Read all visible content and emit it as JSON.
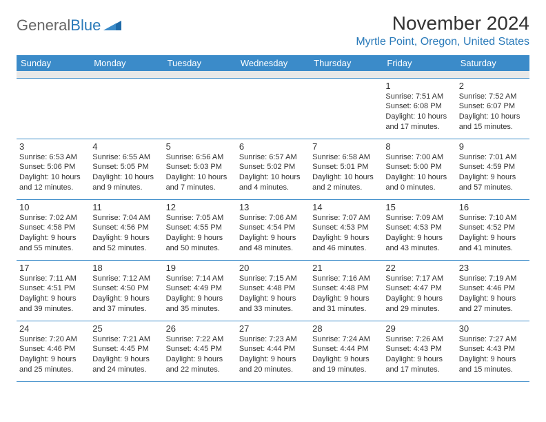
{
  "brand": {
    "word1": "General",
    "word2": "Blue"
  },
  "title": "November 2024",
  "location": "Myrtle Point, Oregon, United States",
  "day_headers": [
    "Sunday",
    "Monday",
    "Tuesday",
    "Wednesday",
    "Thursday",
    "Friday",
    "Saturday"
  ],
  "colors": {
    "header_bg": "#3b8bc9",
    "header_text": "#ffffff",
    "accent": "#2a7ab9",
    "cell_border": "#3b8bc9",
    "blank_row_bg": "#e8e8e8"
  },
  "typography": {
    "title_fontsize": 28,
    "location_fontsize": 16,
    "header_fontsize": 13,
    "daynum_fontsize": 13,
    "cell_fontsize": 11
  },
  "weeks": [
    [
      null,
      null,
      null,
      null,
      null,
      {
        "n": "1",
        "sr": "Sunrise: 7:51 AM",
        "ss": "Sunset: 6:08 PM",
        "d1": "Daylight: 10 hours",
        "d2": "and 17 minutes."
      },
      {
        "n": "2",
        "sr": "Sunrise: 7:52 AM",
        "ss": "Sunset: 6:07 PM",
        "d1": "Daylight: 10 hours",
        "d2": "and 15 minutes."
      }
    ],
    [
      {
        "n": "3",
        "sr": "Sunrise: 6:53 AM",
        "ss": "Sunset: 5:06 PM",
        "d1": "Daylight: 10 hours",
        "d2": "and 12 minutes."
      },
      {
        "n": "4",
        "sr": "Sunrise: 6:55 AM",
        "ss": "Sunset: 5:05 PM",
        "d1": "Daylight: 10 hours",
        "d2": "and 9 minutes."
      },
      {
        "n": "5",
        "sr": "Sunrise: 6:56 AM",
        "ss": "Sunset: 5:03 PM",
        "d1": "Daylight: 10 hours",
        "d2": "and 7 minutes."
      },
      {
        "n": "6",
        "sr": "Sunrise: 6:57 AM",
        "ss": "Sunset: 5:02 PM",
        "d1": "Daylight: 10 hours",
        "d2": "and 4 minutes."
      },
      {
        "n": "7",
        "sr": "Sunrise: 6:58 AM",
        "ss": "Sunset: 5:01 PM",
        "d1": "Daylight: 10 hours",
        "d2": "and 2 minutes."
      },
      {
        "n": "8",
        "sr": "Sunrise: 7:00 AM",
        "ss": "Sunset: 5:00 PM",
        "d1": "Daylight: 10 hours",
        "d2": "and 0 minutes."
      },
      {
        "n": "9",
        "sr": "Sunrise: 7:01 AM",
        "ss": "Sunset: 4:59 PM",
        "d1": "Daylight: 9 hours",
        "d2": "and 57 minutes."
      }
    ],
    [
      {
        "n": "10",
        "sr": "Sunrise: 7:02 AM",
        "ss": "Sunset: 4:58 PM",
        "d1": "Daylight: 9 hours",
        "d2": "and 55 minutes."
      },
      {
        "n": "11",
        "sr": "Sunrise: 7:04 AM",
        "ss": "Sunset: 4:56 PM",
        "d1": "Daylight: 9 hours",
        "d2": "and 52 minutes."
      },
      {
        "n": "12",
        "sr": "Sunrise: 7:05 AM",
        "ss": "Sunset: 4:55 PM",
        "d1": "Daylight: 9 hours",
        "d2": "and 50 minutes."
      },
      {
        "n": "13",
        "sr": "Sunrise: 7:06 AM",
        "ss": "Sunset: 4:54 PM",
        "d1": "Daylight: 9 hours",
        "d2": "and 48 minutes."
      },
      {
        "n": "14",
        "sr": "Sunrise: 7:07 AM",
        "ss": "Sunset: 4:53 PM",
        "d1": "Daylight: 9 hours",
        "d2": "and 46 minutes."
      },
      {
        "n": "15",
        "sr": "Sunrise: 7:09 AM",
        "ss": "Sunset: 4:53 PM",
        "d1": "Daylight: 9 hours",
        "d2": "and 43 minutes."
      },
      {
        "n": "16",
        "sr": "Sunrise: 7:10 AM",
        "ss": "Sunset: 4:52 PM",
        "d1": "Daylight: 9 hours",
        "d2": "and 41 minutes."
      }
    ],
    [
      {
        "n": "17",
        "sr": "Sunrise: 7:11 AM",
        "ss": "Sunset: 4:51 PM",
        "d1": "Daylight: 9 hours",
        "d2": "and 39 minutes."
      },
      {
        "n": "18",
        "sr": "Sunrise: 7:12 AM",
        "ss": "Sunset: 4:50 PM",
        "d1": "Daylight: 9 hours",
        "d2": "and 37 minutes."
      },
      {
        "n": "19",
        "sr": "Sunrise: 7:14 AM",
        "ss": "Sunset: 4:49 PM",
        "d1": "Daylight: 9 hours",
        "d2": "and 35 minutes."
      },
      {
        "n": "20",
        "sr": "Sunrise: 7:15 AM",
        "ss": "Sunset: 4:48 PM",
        "d1": "Daylight: 9 hours",
        "d2": "and 33 minutes."
      },
      {
        "n": "21",
        "sr": "Sunrise: 7:16 AM",
        "ss": "Sunset: 4:48 PM",
        "d1": "Daylight: 9 hours",
        "d2": "and 31 minutes."
      },
      {
        "n": "22",
        "sr": "Sunrise: 7:17 AM",
        "ss": "Sunset: 4:47 PM",
        "d1": "Daylight: 9 hours",
        "d2": "and 29 minutes."
      },
      {
        "n": "23",
        "sr": "Sunrise: 7:19 AM",
        "ss": "Sunset: 4:46 PM",
        "d1": "Daylight: 9 hours",
        "d2": "and 27 minutes."
      }
    ],
    [
      {
        "n": "24",
        "sr": "Sunrise: 7:20 AM",
        "ss": "Sunset: 4:46 PM",
        "d1": "Daylight: 9 hours",
        "d2": "and 25 minutes."
      },
      {
        "n": "25",
        "sr": "Sunrise: 7:21 AM",
        "ss": "Sunset: 4:45 PM",
        "d1": "Daylight: 9 hours",
        "d2": "and 24 minutes."
      },
      {
        "n": "26",
        "sr": "Sunrise: 7:22 AM",
        "ss": "Sunset: 4:45 PM",
        "d1": "Daylight: 9 hours",
        "d2": "and 22 minutes."
      },
      {
        "n": "27",
        "sr": "Sunrise: 7:23 AM",
        "ss": "Sunset: 4:44 PM",
        "d1": "Daylight: 9 hours",
        "d2": "and 20 minutes."
      },
      {
        "n": "28",
        "sr": "Sunrise: 7:24 AM",
        "ss": "Sunset: 4:44 PM",
        "d1": "Daylight: 9 hours",
        "d2": "and 19 minutes."
      },
      {
        "n": "29",
        "sr": "Sunrise: 7:26 AM",
        "ss": "Sunset: 4:43 PM",
        "d1": "Daylight: 9 hours",
        "d2": "and 17 minutes."
      },
      {
        "n": "30",
        "sr": "Sunrise: 7:27 AM",
        "ss": "Sunset: 4:43 PM",
        "d1": "Daylight: 9 hours",
        "d2": "and 15 minutes."
      }
    ]
  ]
}
